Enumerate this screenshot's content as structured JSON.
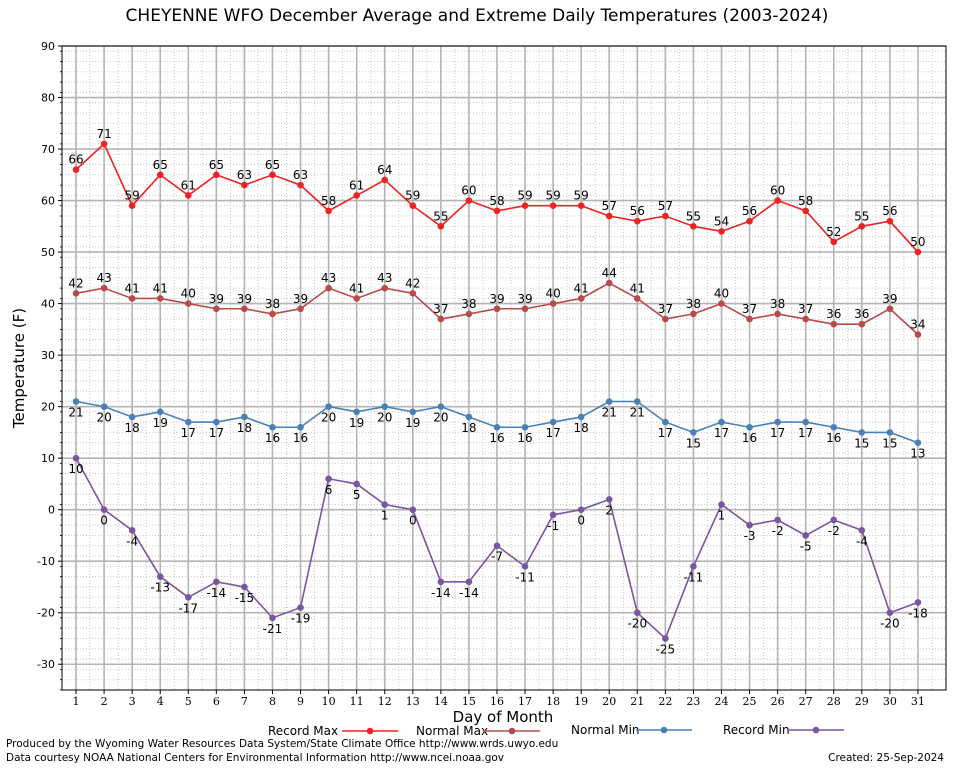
{
  "chart_data": {
    "type": "line",
    "title": "CHEYENNE WFO December Average and Extreme Daily Temperatures (2003-2024)",
    "xlabel": "Day of Month",
    "ylabel": "Temperature (F)",
    "ylim": [
      -35,
      90
    ],
    "yticks": [
      -30,
      -20,
      -10,
      0,
      10,
      20,
      30,
      40,
      50,
      60,
      70,
      80,
      90
    ],
    "x": [
      1,
      2,
      3,
      4,
      5,
      6,
      7,
      8,
      9,
      10,
      11,
      12,
      13,
      14,
      15,
      16,
      17,
      18,
      19,
      20,
      21,
      22,
      23,
      24,
      25,
      26,
      27,
      28,
      29,
      30,
      31
    ],
    "grid": true,
    "legend_position": "bottom",
    "series": [
      {
        "name": "Record Max",
        "color": "#ee2222",
        "values": [
          66,
          71,
          59,
          65,
          61,
          65,
          63,
          65,
          63,
          58,
          61,
          64,
          59,
          55,
          60,
          58,
          59,
          59,
          59,
          57,
          56,
          57,
          55,
          54,
          56,
          60,
          58,
          52,
          55,
          56,
          50
        ]
      },
      {
        "name": "Normal Max",
        "color": "#b84a4a",
        "values": [
          42,
          43,
          41,
          41,
          40,
          39,
          39,
          38,
          39,
          43,
          41,
          43,
          42,
          37,
          38,
          39,
          39,
          40,
          41,
          44,
          41,
          37,
          38,
          40,
          37,
          38,
          37,
          36,
          36,
          39,
          34
        ]
      },
      {
        "name": "Normal Min",
        "color": "#4a80b8",
        "values": [
          21,
          20,
          18,
          19,
          17,
          17,
          18,
          16,
          16,
          20,
          19,
          20,
          19,
          20,
          18,
          16,
          16,
          17,
          18,
          21,
          21,
          17,
          15,
          17,
          16,
          17,
          17,
          16,
          15,
          15,
          13
        ]
      },
      {
        "name": "Record Min",
        "color": "#7a55a0",
        "values": [
          10,
          0,
          -4,
          -13,
          -17,
          -14,
          -15,
          -21,
          -19,
          6,
          5,
          1,
          0,
          -14,
          -14,
          -7,
          -11,
          -1,
          0,
          2,
          -20,
          -25,
          -11,
          1,
          -3,
          -2,
          -5,
          -2,
          -4,
          -20,
          -18
        ]
      }
    ]
  },
  "footer": {
    "produced_by": "Produced by the Wyoming Water Resources Data System/State Climate Office http://www.wrds.uwyo.edu",
    "data_courtesy": "Data courtesy NOAA National Centers for Environmental Information http://www.ncei.noaa.gov",
    "created": "Created: 25-Sep-2024"
  }
}
